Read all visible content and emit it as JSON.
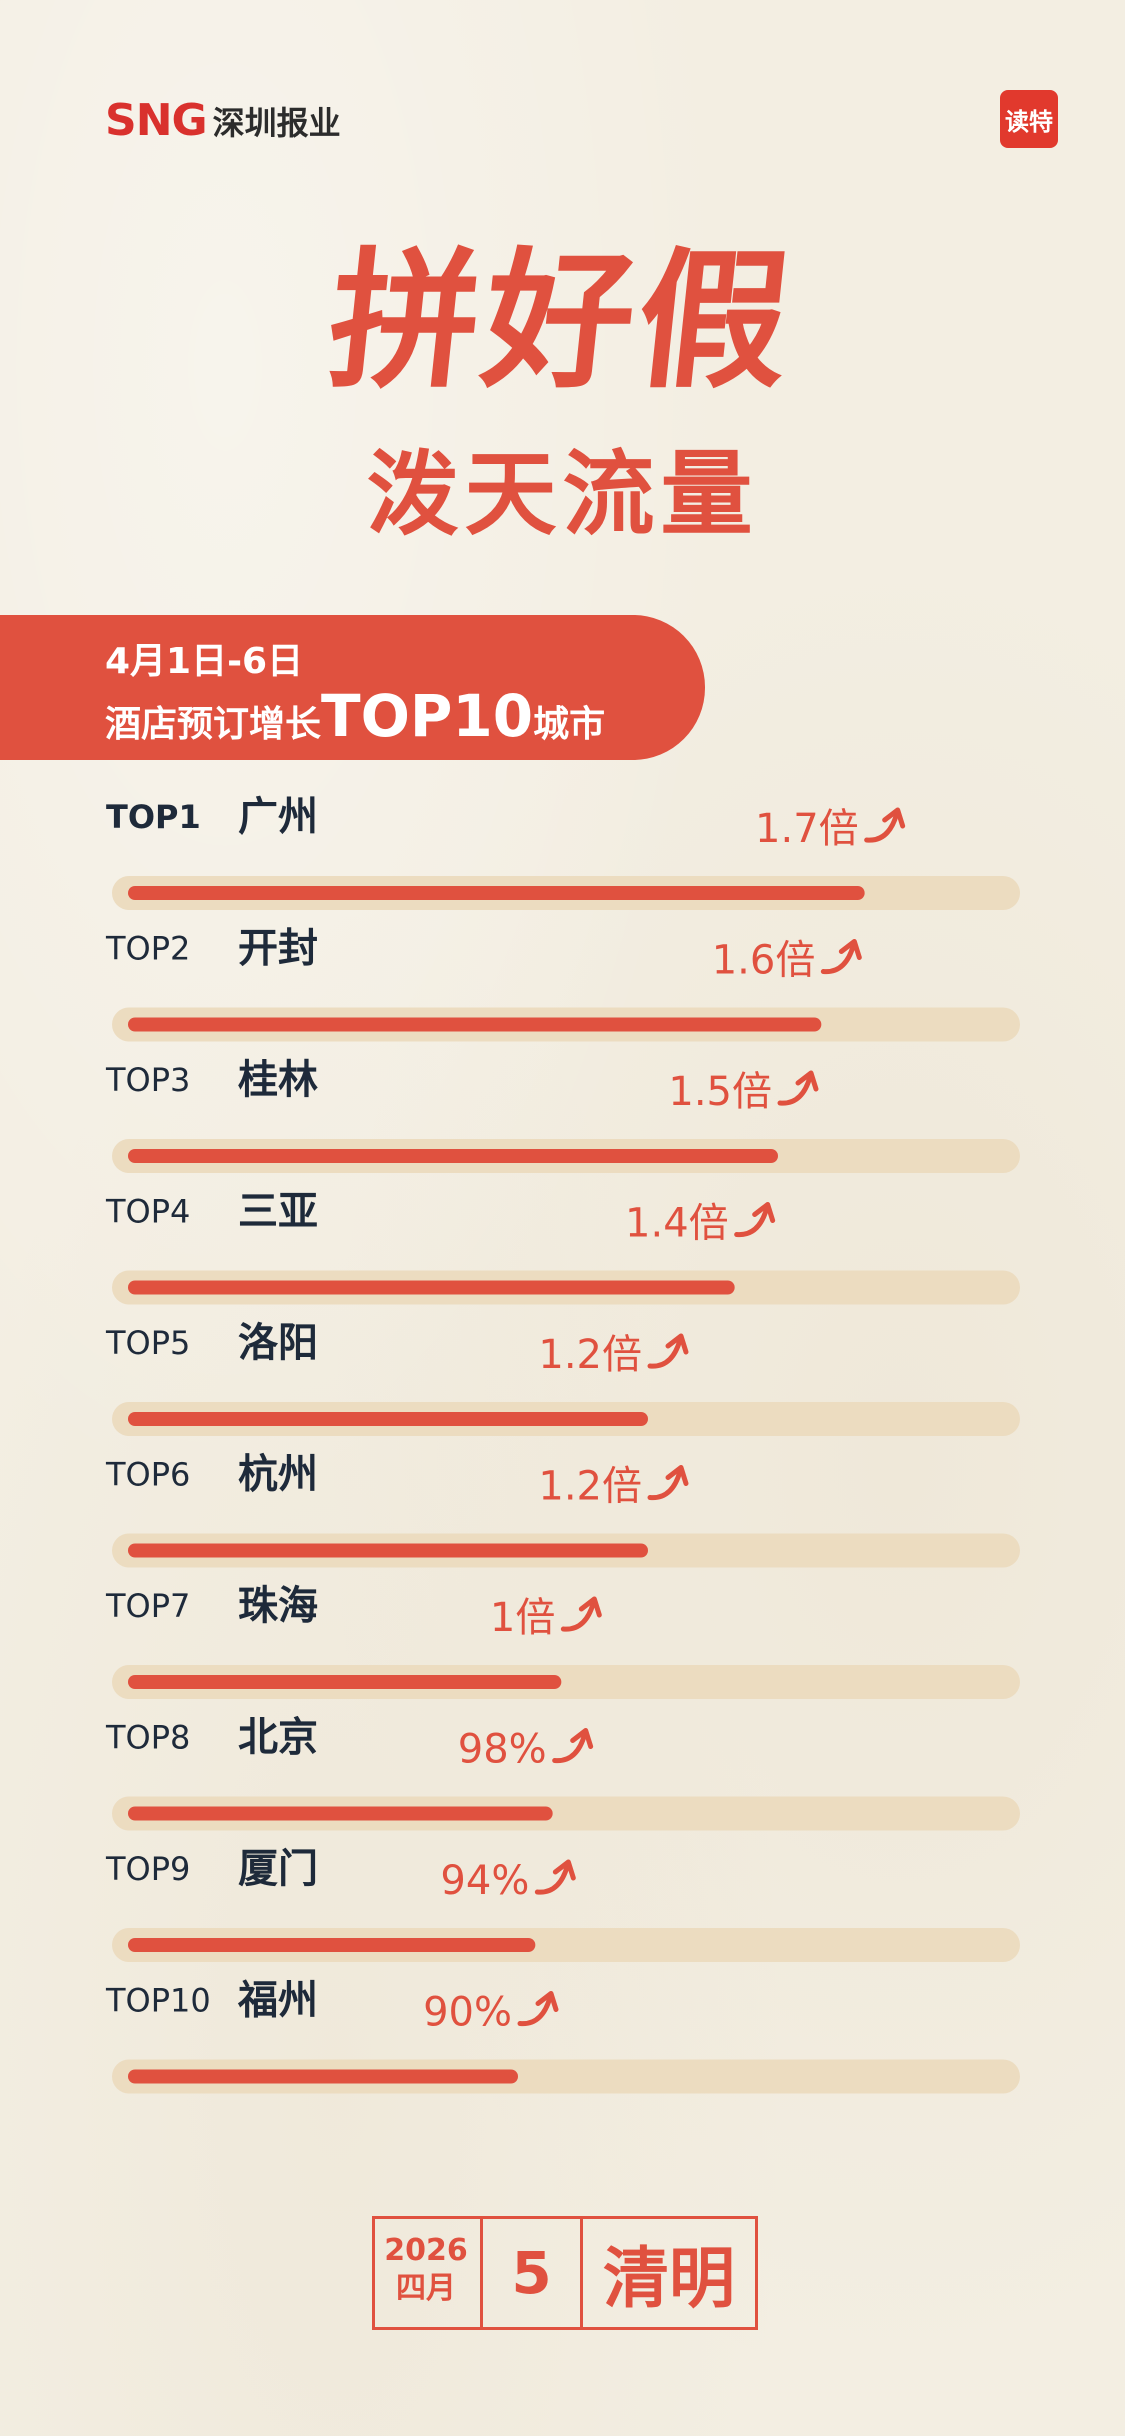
{
  "header": {
    "logo_mark": "SNG",
    "logo_text": "深圳报业",
    "badge": "读特"
  },
  "title": {
    "main": "拼好假",
    "sub": "泼天流量"
  },
  "banner": {
    "line1": "4月1日-6日",
    "line2_prefix": "酒店预订增长",
    "line2_highlight": "TOP10",
    "line2_suffix": "城市"
  },
  "colors": {
    "accent": "#e0513f",
    "track": "#ecdcc0",
    "text": "#1e2a3a"
  },
  "chart_data": {
    "type": "bar",
    "orientation": "horizontal",
    "value_unit": "growth multiple (1 = 100%)",
    "categories": [
      "广州",
      "开封",
      "桂林",
      "三亚",
      "洛阳",
      "杭州",
      "珠海",
      "北京",
      "厦门",
      "福州"
    ],
    "ranks": [
      "TOP1",
      "TOP2",
      "TOP3",
      "TOP4",
      "TOP5",
      "TOP6",
      "TOP7",
      "TOP8",
      "TOP9",
      "TOP10"
    ],
    "values": [
      1.7,
      1.6,
      1.5,
      1.4,
      1.2,
      1.2,
      1.0,
      0.98,
      0.94,
      0.9
    ],
    "value_labels": [
      "1.7倍",
      "1.6倍",
      "1.5倍",
      "1.4倍",
      "1.2倍",
      "1.2倍",
      "1倍",
      "98%",
      "94%",
      "90%"
    ],
    "max": 1.8,
    "trend_icon": "curved-up-arrow-icon"
  },
  "footer": {
    "year": "2026",
    "month": "四月",
    "day": "5",
    "festival": "清明"
  }
}
